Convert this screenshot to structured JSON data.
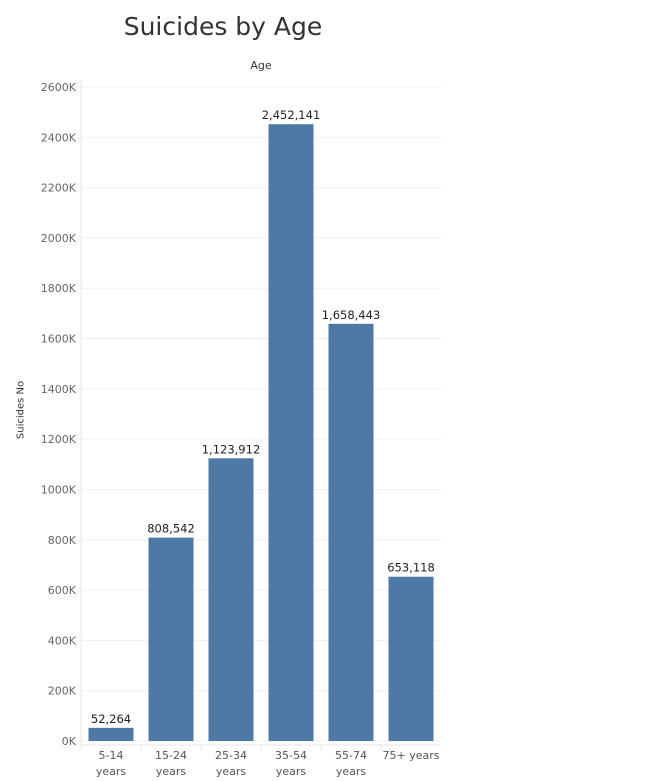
{
  "chart_data": {
    "type": "bar",
    "title": "Suicides by Age",
    "xlabel": "Age",
    "ylabel": "Suicides No",
    "categories": [
      [
        "5-14",
        "years"
      ],
      [
        "15-24",
        "years"
      ],
      [
        "25-34",
        "years"
      ],
      [
        "35-54",
        "years"
      ],
      [
        "55-74",
        "years"
      ],
      [
        "75+ years"
      ]
    ],
    "values": [
      52264,
      808542,
      1123912,
      2452141,
      1658443,
      653118
    ],
    "data_labels": [
      "52,264",
      "808,542",
      "1,123,912",
      "2,452,141",
      "1,658,443",
      "653,118"
    ],
    "ylim": [
      0,
      2600000
    ],
    "yticks": [
      0,
      200000,
      400000,
      600000,
      800000,
      1000000,
      1200000,
      1400000,
      1600000,
      1800000,
      2000000,
      2200000,
      2400000,
      2600000
    ],
    "ytick_labels": [
      "0K",
      "200K",
      "400K",
      "600K",
      "800K",
      "1000K",
      "1200K",
      "1400K",
      "1600K",
      "1800K",
      "2000K",
      "2200K",
      "2400K",
      "2600K"
    ],
    "grid": true,
    "bar_color": "#4e79a7"
  }
}
